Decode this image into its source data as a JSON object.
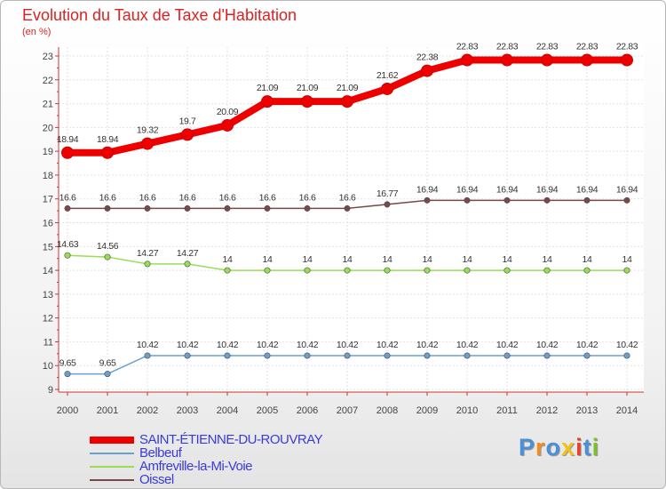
{
  "title": "Evolution du Taux de Taxe d'Habitation",
  "subtitle": "(en %)",
  "logo": {
    "text": "Proxiti",
    "letter_colors": [
      "#4a90d9",
      "#f28c1c",
      "#4a90d9",
      "#f2c21c",
      "#e8412c",
      "#4a90d9",
      "#7bbf2c"
    ]
  },
  "chart_data": {
    "type": "line",
    "x": [
      "2000",
      "2001",
      "2002",
      "2003",
      "2004",
      "2005",
      "2006",
      "2007",
      "2008",
      "2009",
      "2010",
      "2011",
      "2012",
      "2013",
      "2014"
    ],
    "ylim": [
      9,
      23
    ],
    "yticks": [
      "9",
      "10",
      "11",
      "12",
      "13",
      "14",
      "15",
      "16",
      "17",
      "18",
      "19",
      "20",
      "21",
      "22",
      "23"
    ],
    "grid": true,
    "legend_position": "bottom-left",
    "series": [
      {
        "name": "SAINT-ÉTIENNE-DU-ROUVRAY",
        "color": "#ee0000",
        "style": "thick",
        "values": [
          18.94,
          18.94,
          19.32,
          19.7,
          20.09,
          21.09,
          21.09,
          21.09,
          21.62,
          22.38,
          22.83,
          22.83,
          22.83,
          22.83,
          22.83
        ],
        "labels": [
          "18.94",
          "18.94",
          "19.32",
          "19.7",
          "20.09",
          "21.09",
          "21.09",
          "21.09",
          "21.62",
          "22.38",
          "22.83",
          "22.83",
          "22.83",
          "22.83",
          "22.83"
        ]
      },
      {
        "name": "Belbeuf",
        "color": "#6aa0d0",
        "style": "thin",
        "values": [
          9.65,
          9.65,
          10.42,
          10.42,
          10.42,
          10.42,
          10.42,
          10.42,
          10.42,
          10.42,
          10.42,
          10.42,
          10.42,
          10.42,
          10.42
        ],
        "labels": [
          "9.65",
          "9.65",
          "10.42",
          "10.42",
          "10.42",
          "10.42",
          "10.42",
          "10.42",
          "10.42",
          "10.42",
          "10.42",
          "10.42",
          "10.42",
          "10.42",
          "10.42"
        ]
      },
      {
        "name": "Amfreville-la-Mi-Voie",
        "color": "#99dd55",
        "style": "thin",
        "values": [
          14.63,
          14.56,
          14.27,
          14.27,
          14,
          14,
          14,
          14,
          14,
          14,
          14,
          14,
          14,
          14,
          14
        ],
        "labels": [
          "14.63",
          "14.56",
          "14.27",
          "14.27",
          "14",
          "14",
          "14",
          "14",
          "14",
          "14",
          "14",
          "14",
          "14",
          "14",
          "14"
        ]
      },
      {
        "name": "Oissel",
        "color": "#7a4848",
        "style": "thin",
        "values": [
          16.6,
          16.6,
          16.6,
          16.6,
          16.6,
          16.6,
          16.6,
          16.6,
          16.77,
          16.94,
          16.94,
          16.94,
          16.94,
          16.94,
          16.94
        ],
        "labels": [
          "16.6",
          "16.6",
          "16.6",
          "16.6",
          "16.6",
          "16.6",
          "16.6",
          "16.6",
          "16.77",
          "16.94",
          "16.94",
          "16.94",
          "16.94",
          "16.94",
          "16.94"
        ]
      }
    ]
  }
}
